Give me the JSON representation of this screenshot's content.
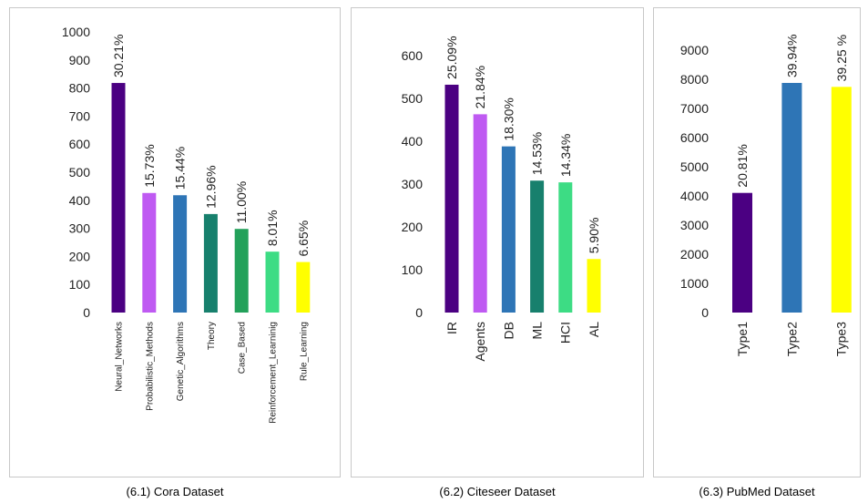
{
  "captions": [
    "(6.1) Cora Dataset",
    "(6.2) Citeseer Dataset",
    "(6.3) PubMed Dataset"
  ],
  "chart_data": [
    {
      "type": "bar",
      "caption": "(6.1) Cora Dataset",
      "categories": [
        "Neural_Networks",
        "Probabilistic_Methods",
        "Genetic_Algorithms",
        "Theory",
        "Case_Based",
        "Reinforcement_Learninig",
        "Rule_Learning"
      ],
      "values": [
        818,
        426,
        418,
        351,
        298,
        217,
        180
      ],
      "data_labels": [
        "30.21%",
        "15.73%",
        "15.44%",
        "12.96%",
        "11.00%",
        "8.01%",
        "6.65%"
      ],
      "colors": [
        "#4b0082",
        "#bf5af2",
        "#2e75b6",
        "#17806d",
        "#23a15a",
        "#3ddc84",
        "#ffff00"
      ],
      "ylim": [
        0,
        1000
      ],
      "yticks": [
        0,
        100,
        200,
        300,
        400,
        500,
        600,
        700,
        800,
        900,
        1000
      ],
      "xlabel": "",
      "ylabel": "",
      "title": ""
    },
    {
      "type": "bar",
      "caption": "(6.2) Citeseer Dataset",
      "categories": [
        "IR",
        "Agents",
        "DB",
        "ML",
        "HCI",
        "AL"
      ],
      "values": [
        532,
        463,
        388,
        308,
        304,
        125
      ],
      "data_labels": [
        "25.09%",
        "21.84%",
        "18.30%",
        "14.53%",
        "14.34%",
        "5.90%"
      ],
      "colors": [
        "#4b0082",
        "#bf5af2",
        "#2e75b6",
        "#17806d",
        "#3ddc84",
        "#ffff00"
      ],
      "ylim": [
        0,
        600
      ],
      "yticks": [
        0,
        100,
        200,
        300,
        400,
        500,
        600
      ],
      "xlabel": "",
      "ylabel": "",
      "title": ""
    },
    {
      "type": "bar",
      "caption": "(6.3) PubMed Dataset",
      "categories": [
        "Type1",
        "Type2",
        "Type3"
      ],
      "values": [
        4103,
        7875,
        7739
      ],
      "data_labels": [
        "20.81%",
        "39.94%",
        "39.25  %"
      ],
      "colors": [
        "#4b0082",
        "#2e75b6",
        "#ffff00"
      ],
      "ylim": [
        0,
        9000
      ],
      "yticks": [
        0,
        1000,
        2000,
        3000,
        4000,
        5000,
        6000,
        7000,
        8000,
        9000
      ],
      "xlabel": "",
      "ylabel": "",
      "title": ""
    }
  ]
}
